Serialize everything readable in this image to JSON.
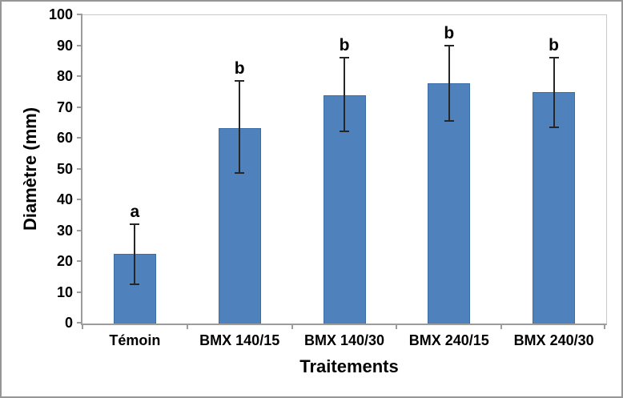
{
  "chart_data": {
    "type": "bar",
    "title": "",
    "xlabel": "Traitements",
    "ylabel": "Diamètre (mm)",
    "categories": [
      "Témoin",
      "BMX 140/15",
      "BMX 140/30",
      "BMX 240/15",
      "BMX 240/30"
    ],
    "values": [
      22.5,
      63.5,
      74,
      78,
      75
    ],
    "error_low": [
      12.5,
      48.5,
      62,
      65.5,
      63.5
    ],
    "error_high": [
      32.5,
      79,
      86.5,
      90.5,
      86.5
    ],
    "significance_letters": [
      "a",
      "b",
      "b",
      "b",
      "b"
    ],
    "ylim": [
      0,
      100
    ],
    "yticks": [
      0,
      10,
      20,
      30,
      40,
      50,
      60,
      70,
      80,
      90,
      100
    ],
    "grid": "off",
    "legend": "none",
    "colors": {
      "bar_fill": "#4F81BD",
      "bar_border": "#3B6CA5",
      "error_bar": "#262626",
      "axis_line": "#9C9C9C",
      "plot_border": "#C9C9C9",
      "outer_border": "#969696",
      "text": "#000000",
      "background": "#FFFFFF"
    }
  }
}
